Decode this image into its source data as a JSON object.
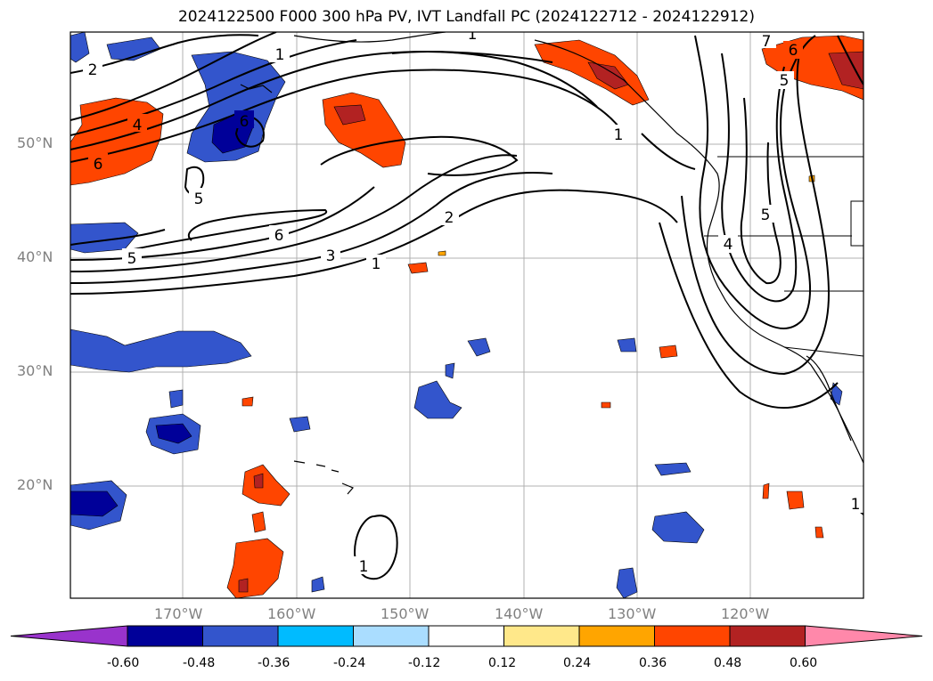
{
  "title": "2024122500 F000 300 hPa PV, IVT Landfall PC (2024122712 - 2024122912)",
  "latitude_ticks": [
    "50°N",
    "40°N",
    "30°N",
    "20°N"
  ],
  "longitude_ticks": [
    "170°W",
    "160°W",
    "150°W",
    "140°W",
    "130°W",
    "120°W"
  ],
  "colorbar": {
    "tick_labels": [
      "-0.60",
      "-0.48",
      "-0.36",
      "-0.24",
      "-0.12",
      "0.12",
      "0.24",
      "0.36",
      "0.48",
      "0.60"
    ],
    "colors": [
      "#9933cc",
      "#000099",
      "#3355cc",
      "#00bbff",
      "#aaddff",
      "#ffffff",
      "#ffe88a",
      "#ffa500",
      "#ff4500",
      "#b22222",
      "#ff88aa"
    ]
  },
  "contour_labels": [
    "2",
    "4",
    "6",
    "6",
    "5",
    "5",
    "6",
    "3",
    "1",
    "2",
    "1",
    "1",
    "1",
    "7",
    "6",
    "5",
    "5",
    "4",
    "1",
    "1"
  ],
  "colors": {
    "frame": "#000000",
    "grid": "#b0b0b0",
    "tick_text": "#808080"
  }
}
